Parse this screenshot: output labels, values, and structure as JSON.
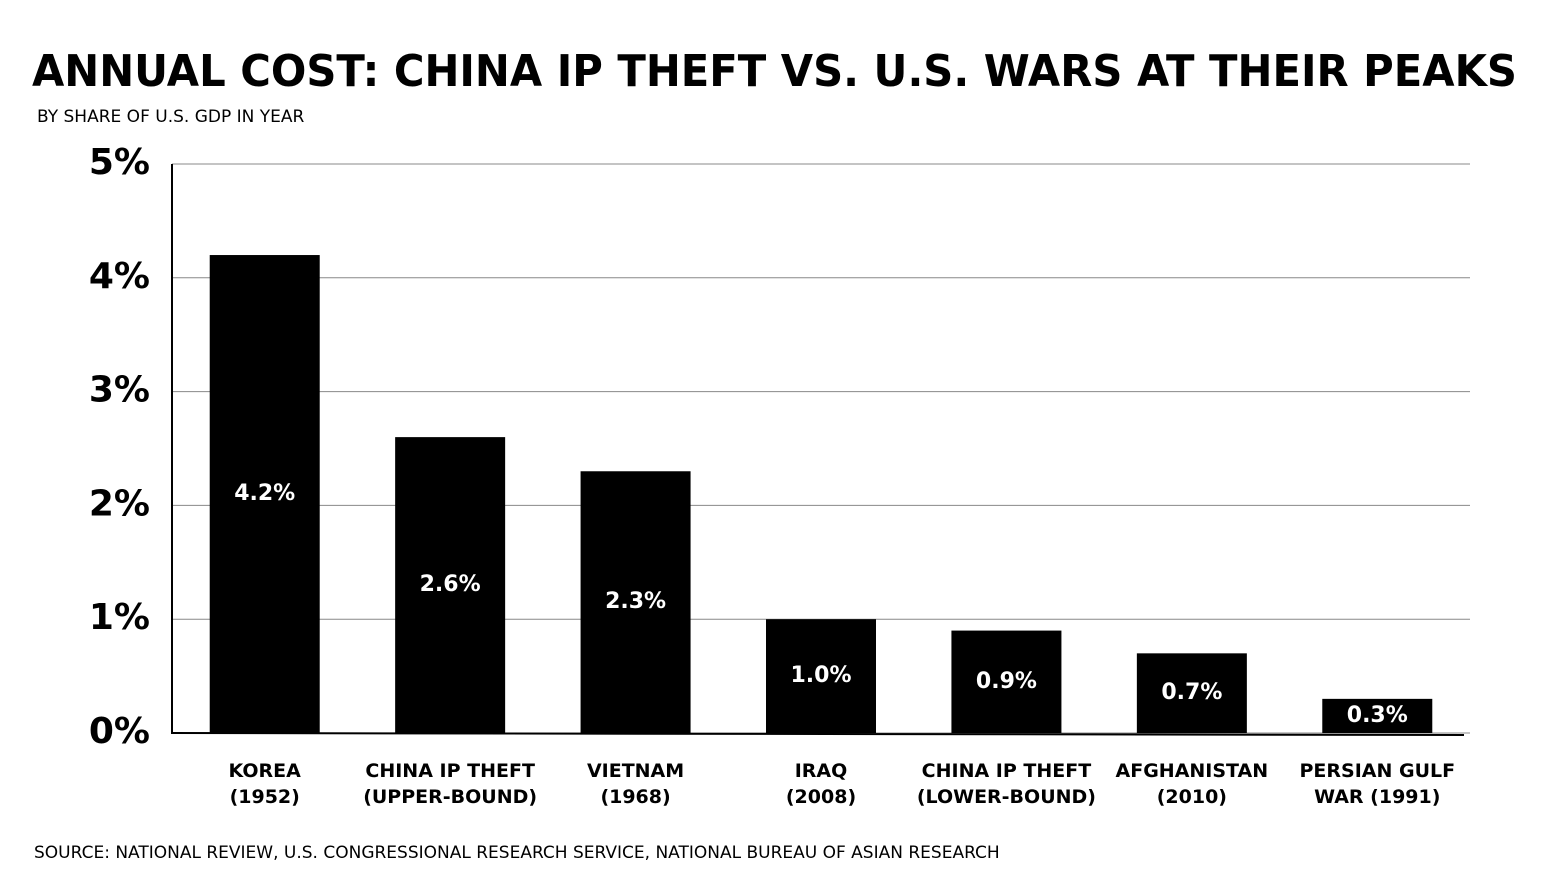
{
  "chart_data": {
    "type": "bar",
    "title": "ANNUAL COST: CHINA IP THEFT VS. U.S. WARS AT THEIR PEAKS",
    "subtitle": "BY SHARE OF U.S. GDP IN YEAR",
    "source": "SOURCE: NATIONAL REVIEW, U.S. CONGRESSIONAL RESEARCH SERVICE, NATIONAL BUREAU OF ASIAN RESEARCH",
    "categories": [
      "KOREA\n(1952)",
      "CHINA IP THEFT\n(UPPER-BOUND)",
      "VIETNAM\n(1968)",
      "IRAQ\n(2008)",
      "CHINA IP THEFT\n(LOWER-BOUND)",
      "AFGHANISTAN\n(2010)",
      "PERSIAN GULF\nWAR (1991)"
    ],
    "values": [
      4.2,
      2.6,
      2.3,
      1.0,
      0.9,
      0.7,
      0.3
    ],
    "value_labels": [
      "4.2%",
      "2.6%",
      "2.3%",
      "1.0%",
      "0.9%",
      "0.7%",
      "0.3%"
    ],
    "color": "#000000",
    "ylim": [
      0,
      5
    ],
    "yticks": [
      {
        "value": 0,
        "label": "0%"
      },
      {
        "value": 1,
        "label": "1%"
      },
      {
        "value": 2,
        "label": "2%"
      },
      {
        "value": 3,
        "label": "3%"
      },
      {
        "value": 4,
        "label": "4%"
      },
      {
        "value": 5,
        "label": "5%"
      }
    ],
    "grid": true
  }
}
